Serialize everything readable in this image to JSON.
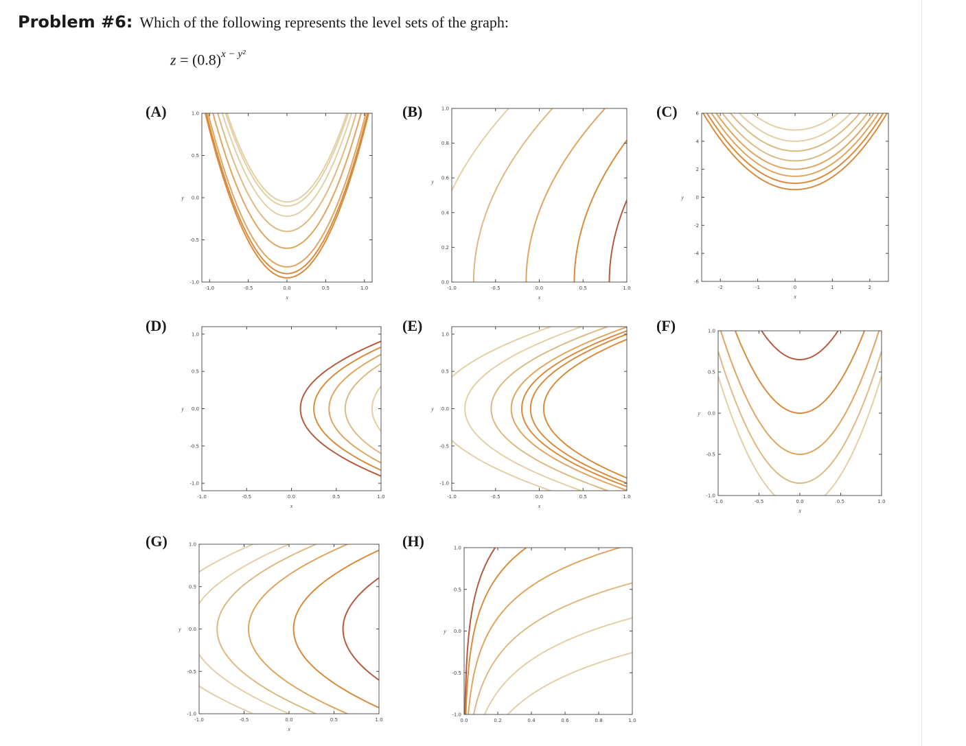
{
  "problem": {
    "label": "Problem #6:",
    "question": "Which of the following represents the level sets of the graph:",
    "formula": {
      "lhs": "z",
      "eq": "=",
      "base": "(0.8)",
      "exponent": "x − y²"
    }
  },
  "colors": {
    "lightest": "#e2d0a4",
    "light": "#ddb982",
    "medium": "#e0a45e",
    "dark": "#d98a3a",
    "darkest": "#b55a3c",
    "axis": "#444444",
    "frame": "#555555"
  },
  "options": [
    {
      "label": "(A)",
      "xlabel": "x",
      "ylabel": "y",
      "xticks": [
        "-1.0",
        "-0.5",
        "0.0",
        "0.5",
        "1.0"
      ],
      "yticks": [
        "1.0",
        "0.5",
        "0.0",
        "-0.5",
        "-1.0"
      ],
      "xrange": [
        -1.1,
        1.1
      ],
      "yrange": [
        -1,
        1
      ]
    },
    {
      "label": "(B)",
      "xlabel": "x",
      "ylabel": "y",
      "xticks": [
        "-1.0",
        "-0.5",
        "0.0",
        "0.5",
        "1.0"
      ],
      "yticks": [
        "1.0",
        "0.8",
        "0.6",
        "0.4",
        "0.2",
        "0.0"
      ],
      "xrange": [
        -1,
        1
      ],
      "yrange": [
        0,
        1
      ]
    },
    {
      "label": "(C)",
      "xlabel": "x",
      "ylabel": "y",
      "xticks": [
        "-2",
        "-1",
        "0",
        "1",
        "2"
      ],
      "yticks": [
        "6",
        "4",
        "2",
        "0",
        "-2",
        "-4",
        "-6"
      ],
      "xrange": [
        -2.5,
        2.5
      ],
      "yrange": [
        -6,
        6
      ]
    },
    {
      "label": "(D)",
      "xlabel": "x",
      "ylabel": "y",
      "xticks": [
        "-1.0",
        "-0.5",
        "0.0",
        "0.5",
        "1.0"
      ],
      "yticks": [
        "1.0",
        "0.5",
        "0.0",
        "-0.5",
        "-1.0"
      ],
      "xrange": [
        -1,
        1
      ],
      "yrange": [
        -1.1,
        1.1
      ]
    },
    {
      "label": "(E)",
      "xlabel": "x",
      "ylabel": "y",
      "xticks": [
        "-1.0",
        "-0.5",
        "0.0",
        "0.5",
        "1.0"
      ],
      "yticks": [
        "1.0",
        "0.5",
        "0.0",
        "-0.5",
        "-1.0"
      ],
      "xrange": [
        -1,
        1
      ],
      "yrange": [
        -1.1,
        1.1
      ]
    },
    {
      "label": "(F)",
      "xlabel": "x",
      "ylabel": "y",
      "xticks": [
        "-1.0",
        "-0.5",
        "0.0",
        "0.5",
        "1.0"
      ],
      "yticks": [
        "1.0",
        "0.5",
        "0.0",
        "-0.5",
        "-1.0"
      ],
      "xrange": [
        -1,
        1
      ],
      "yrange": [
        -1,
        1
      ]
    },
    {
      "label": "(G)",
      "xlabel": "x",
      "ylabel": "y",
      "xticks": [
        "-1.0",
        "-0.5",
        "0.0",
        "0.5",
        "1.0"
      ],
      "yticks": [
        "1.0",
        "0.5",
        "0.0",
        "-0.5",
        "-1.0"
      ],
      "xrange": [
        -1,
        1
      ],
      "yrange": [
        -1,
        1
      ]
    },
    {
      "label": "(H)",
      "xlabel": "",
      "ylabel": "y",
      "xticks": [
        "0.0",
        "0.2",
        "0.4",
        "0.6",
        "0.8",
        "1.0"
      ],
      "yticks": [
        "1.0",
        "0.5",
        "0.0",
        "-0.5",
        "-1.0"
      ],
      "xrange": [
        0,
        1
      ],
      "yrange": [
        -1,
        1
      ]
    }
  ]
}
